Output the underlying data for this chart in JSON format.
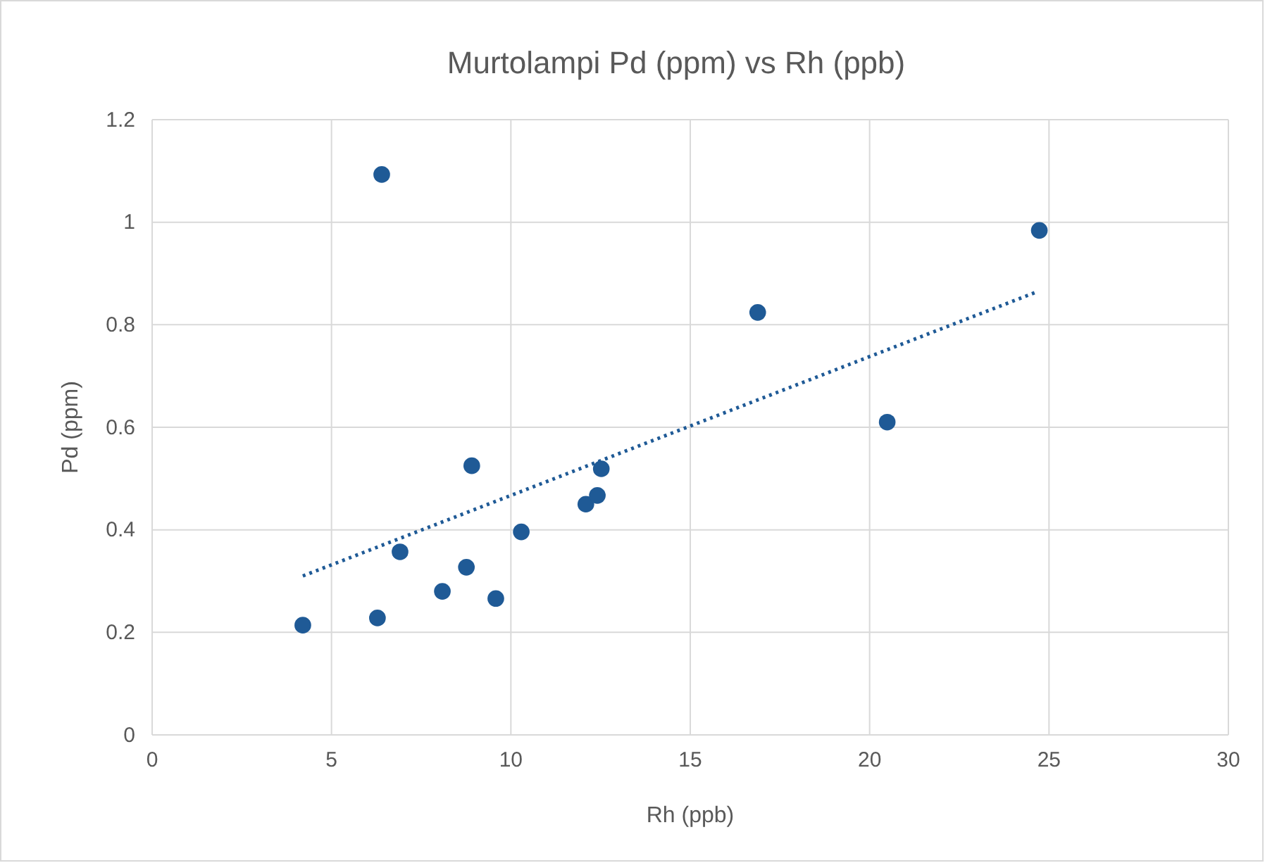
{
  "chart_data": {
    "type": "scatter",
    "title": "Murtolampi Pd (ppm) vs Rh (ppb)",
    "xlabel": "Rh (ppb)",
    "ylabel": "Pd (ppm)",
    "xlim": [
      0,
      30
    ],
    "xticks": [
      0,
      5,
      10,
      15,
      20,
      25,
      30
    ],
    "ylim": [
      0,
      1.2
    ],
    "yticks": [
      0,
      0.2,
      0.4,
      0.6,
      0.8,
      1,
      1.2
    ],
    "grid": true,
    "series": [
      {
        "color": "#1f5a96",
        "marker": "circle",
        "x": [
          4.2,
          6.4,
          6.28,
          6.91,
          8.09,
          8.91,
          8.76,
          9.58,
          10.29,
          12.09,
          12.41,
          12.52,
          16.88,
          20.49,
          24.73
        ],
        "values": [
          0.214,
          1.093,
          0.228,
          0.357,
          0.28,
          0.525,
          0.327,
          0.266,
          0.396,
          0.45,
          0.467,
          0.519,
          0.824,
          0.61,
          0.984
        ]
      },
      {
        "type": "line",
        "color": "#1f5a96",
        "line_style": "dotted",
        "x": [
          4.2,
          24.62
        ],
        "values": [
          0.31,
          0.863
        ]
      }
    ]
  }
}
